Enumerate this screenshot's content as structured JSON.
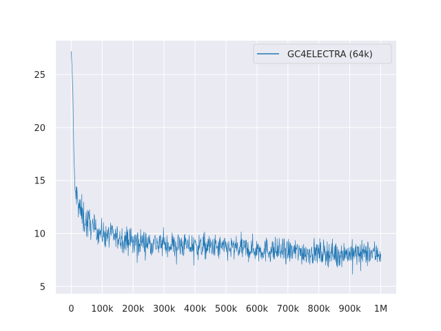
{
  "chart_data": {
    "type": "line",
    "title": "",
    "xlabel": "",
    "ylabel": "",
    "xlim": [
      -50000,
      1050000
    ],
    "ylim": [
      4.3,
      28.2
    ],
    "grid": true,
    "legend_position": "upper right",
    "x_ticks": [
      0,
      100000,
      200000,
      300000,
      400000,
      500000,
      600000,
      700000,
      800000,
      900000,
      1000000
    ],
    "x_tick_labels": [
      "0",
      "100k",
      "200k",
      "300k",
      "400k",
      "500k",
      "600k",
      "700k",
      "800k",
      "900k",
      "1M"
    ],
    "y_ticks": [
      5,
      10,
      15,
      20,
      25
    ],
    "y_tick_labels": [
      "5",
      "10",
      "15",
      "20",
      "25"
    ],
    "series": [
      {
        "name": "GC4ELECTRA (64k)",
        "color": "#1f77b4",
        "trend_points": {
          "x": [
            0,
            2000,
            5000,
            8000,
            12000,
            20000,
            30000,
            50000,
            75000,
            100000,
            150000,
            200000,
            300000,
            400000,
            500000,
            600000,
            700000,
            800000,
            900000,
            1000000
          ],
          "y": [
            27.2,
            25.8,
            23.5,
            18.0,
            14.0,
            13.2,
            12.0,
            11.0,
            10.4,
            10.0,
            9.6,
            9.3,
            9.0,
            8.8,
            8.6,
            8.5,
            8.3,
            8.2,
            8.1,
            8.1
          ]
        },
        "noise_amplitude": 1.0,
        "sample_count": 1000,
        "min_value_approx": 5.3,
        "max_value_after_warmup_approx": 15.1
      }
    ]
  },
  "legend": {
    "label": "GC4ELECTRA (64k)"
  },
  "style": {
    "plot_background": "#eaeaf2",
    "grid_color": "#ffffff",
    "line_color": "#1f77b4"
  }
}
